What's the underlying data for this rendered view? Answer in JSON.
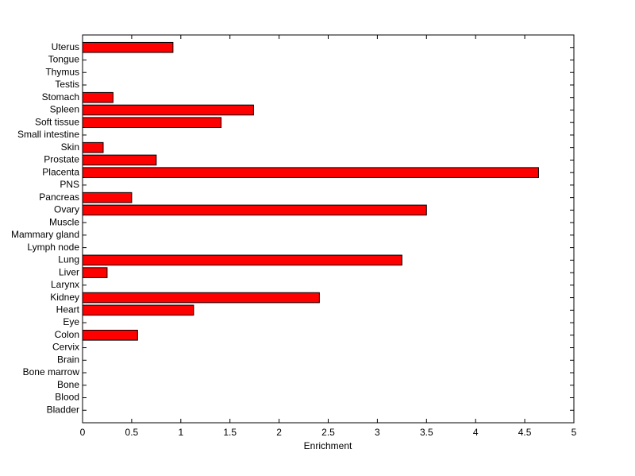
{
  "chart_data": {
    "type": "barh",
    "xlabel": "Enrichment",
    "categories": [
      "Uterus",
      "Tongue",
      "Thymus",
      "Testis",
      "Stomach",
      "Spleen",
      "Soft tissue",
      "Small intestine",
      "Skin",
      "Prostate",
      "Placenta",
      "PNS",
      "Pancreas",
      "Ovary",
      "Muscle",
      "Mammary gland",
      "Lymph node",
      "Lung",
      "Liver",
      "Larynx",
      "Kidney",
      "Heart",
      "Eye",
      "Colon",
      "Cervix",
      "Brain",
      "Bone marrow",
      "Bone",
      "Blood",
      "Bladder"
    ],
    "values": [
      0.92,
      0,
      0,
      0,
      0.31,
      1.74,
      1.41,
      0,
      0.21,
      0.75,
      4.64,
      0,
      0.5,
      3.5,
      0,
      0,
      0,
      3.25,
      0.25,
      0,
      2.41,
      1.13,
      0,
      0.56,
      0,
      0,
      0,
      0,
      0,
      0
    ],
    "color": "#ff0000",
    "xlim": [
      0,
      5
    ],
    "xticks": [
      0,
      0.5,
      1,
      1.5,
      2,
      2.5,
      3,
      3.5,
      4,
      4.5,
      5
    ]
  }
}
